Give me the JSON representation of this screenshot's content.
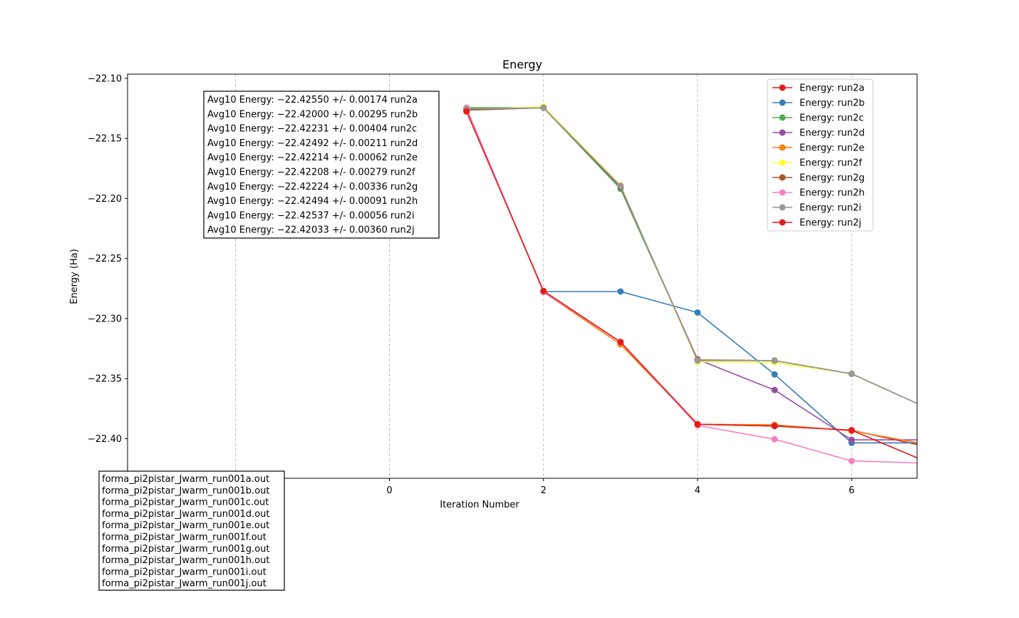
{
  "chart_data": {
    "type": "line",
    "title": "Energy",
    "xlabel": "Iteration Number",
    "ylabel": "Energy (Ha)",
    "xlim": [
      -3.4,
      6.85
    ],
    "ylim": [
      -22.433,
      -22.0965
    ],
    "xticks": [
      0,
      2,
      4,
      6
    ],
    "xtick_labels": [
      "0",
      "2",
      "4",
      "6"
    ],
    "yticks": [
      -22.1,
      -22.15,
      -22.2,
      -22.25,
      -22.3,
      -22.35,
      -22.4
    ],
    "ytick_labels": [
      "−22.10",
      "−22.15",
      "−22.20",
      "−22.25",
      "−22.30",
      "−22.35",
      "−22.40"
    ],
    "grid": "x-dashed",
    "legend_position": "top-right",
    "x": [
      1,
      2,
      3,
      4,
      5,
      6,
      7
    ],
    "series": [
      {
        "name": "Energy: run2a",
        "color": "#e41a1c",
        "values": [
          -22.1265,
          -22.2775,
          -22.3195,
          -22.388,
          -22.3895,
          -22.393,
          -22.407
        ]
      },
      {
        "name": "Energy: run2b",
        "color": "#377eb8",
        "values": [
          -22.1255,
          -22.2775,
          -22.2775,
          -22.295,
          -22.3465,
          -22.4035,
          -22.4035
        ]
      },
      {
        "name": "Energy: run2c",
        "color": "#4daf4a",
        "values": [
          -22.1245,
          -22.1245,
          -22.192,
          -22.3345,
          -22.335,
          -22.346,
          -22.375
        ]
      },
      {
        "name": "Energy: run2d",
        "color": "#984ea3",
        "values": [
          -22.1265,
          -22.1245,
          -22.1905,
          -22.334,
          -22.3595,
          -22.401,
          -22.401
        ]
      },
      {
        "name": "Energy: run2e",
        "color": "#ff7f00",
        "values": [
          -22.1255,
          -22.278,
          -22.3215,
          -22.388,
          -22.3885,
          -22.3935,
          -22.405
        ]
      },
      {
        "name": "Energy: run2f",
        "color": "#ffff33",
        "values": [
          -22.1265,
          -22.1235,
          -22.189,
          -22.336,
          -22.3365,
          -22.346,
          -22.375
        ]
      },
      {
        "name": "Energy: run2g",
        "color": "#a65628",
        "values": [
          -22.1265,
          -22.1245,
          -22.19,
          -22.3345,
          -22.335,
          -22.346,
          -22.375
        ]
      },
      {
        "name": "Energy: run2h",
        "color": "#f781bf",
        "values": [
          -22.1245,
          -22.278,
          -22.3195,
          -22.389,
          -22.4005,
          -22.4185,
          -22.4205
        ]
      },
      {
        "name": "Energy: run2i",
        "color": "#999999",
        "values": [
          -22.1255,
          -22.1245,
          -22.1895,
          -22.335,
          -22.335,
          -22.346,
          -22.375
        ]
      },
      {
        "name": "Energy: run2j",
        "color": "#e41a1c",
        "values": [
          -22.1275,
          -22.277,
          -22.3195,
          -22.388,
          -22.3895,
          -22.393,
          -22.42
        ]
      }
    ],
    "annotation_box": [
      "Avg10 Energy: −22.42550 +/- 0.00174  run2a",
      "Avg10 Energy: −22.42000 +/- 0.00295  run2b",
      "Avg10 Energy: −22.42231 +/- 0.00404  run2c",
      "Avg10 Energy: −22.42492 +/- 0.00211  run2d",
      "Avg10 Energy: −22.42214 +/- 0.00062  run2e",
      "Avg10 Energy: −22.42208 +/- 0.00279  run2f",
      "Avg10 Energy: −22.42224 +/- 0.00336  run2g",
      "Avg10 Energy: −22.42494 +/- 0.00091  run2h",
      "Avg10 Energy: −22.42537 +/- 0.00056  run2i",
      "Avg10 Energy: −22.42033 +/- 0.00360  run2j"
    ],
    "file_box": [
      "forma_pi2pistar_Jwarm_run001a.out",
      "forma_pi2pistar_Jwarm_run001b.out",
      "forma_pi2pistar_Jwarm_run001c.out",
      "forma_pi2pistar_Jwarm_run001d.out",
      "forma_pi2pistar_Jwarm_run001e.out",
      "forma_pi2pistar_Jwarm_run001f.out",
      "forma_pi2pistar_Jwarm_run001g.out",
      "forma_pi2pistar_Jwarm_run001h.out",
      "forma_pi2pistar_Jwarm_run001i.out",
      "forma_pi2pistar_Jwarm_run001j.out"
    ]
  }
}
